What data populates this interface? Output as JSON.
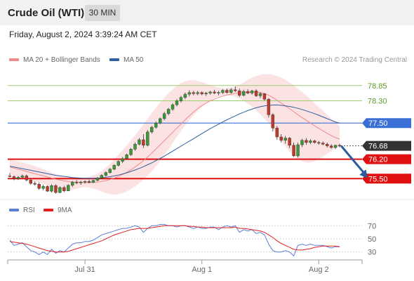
{
  "header": {
    "instrument": "Crude Oil (WTI)",
    "timeframe": "30 MIN"
  },
  "datetime": "Friday, August 2, 2024 3:39:24 AM CET",
  "legend_main": [
    {
      "label": "MA 20 + Bollinger Bands",
      "color": "#f08a8a"
    },
    {
      "label": "MA 50",
      "color": "#2f5f9e"
    }
  ],
  "credit": "Research © 2024 Trading Central",
  "legend_rsi": [
    {
      "label": "RSI",
      "color": "#5b7fd6"
    },
    {
      "label": "9MA",
      "color": "#e02020"
    }
  ],
  "colors": {
    "up": "#3a9a3a",
    "down": "#c0392b",
    "green_line": "#9acd6e",
    "blue_line": "#3a6fd6",
    "red_line": "#e01010",
    "arrow": "#2c5a9c"
  },
  "chart_data": {
    "type": "candlestick",
    "ylim": [
      74.8,
      79.3
    ],
    "x_ticks": [
      {
        "label": "Jul 31",
        "at": 18
      },
      {
        "label": "Aug 1",
        "at": 46
      },
      {
        "label": "Aug 2",
        "at": 74
      }
    ],
    "bars_count": 80,
    "candles": [
      [
        75.6,
        75.7,
        75.55,
        75.58
      ],
      [
        75.58,
        75.62,
        75.44,
        75.5
      ],
      [
        75.5,
        75.6,
        75.45,
        75.55
      ],
      [
        75.55,
        75.65,
        75.5,
        75.6
      ],
      [
        75.6,
        75.65,
        75.4,
        75.45
      ],
      [
        75.45,
        75.5,
        75.28,
        75.33
      ],
      [
        75.33,
        75.4,
        75.25,
        75.3
      ],
      [
        75.3,
        75.36,
        75.1,
        75.15
      ],
      [
        75.15,
        75.28,
        75.08,
        75.22
      ],
      [
        75.22,
        75.26,
        75.02,
        75.05
      ],
      [
        75.05,
        75.3,
        75.0,
        75.25
      ],
      [
        75.25,
        75.3,
        74.96,
        75.0
      ],
      [
        75.0,
        75.22,
        74.98,
        75.18
      ],
      [
        75.18,
        75.24,
        75.02,
        75.06
      ],
      [
        75.06,
        75.3,
        75.05,
        75.26
      ],
      [
        75.26,
        75.42,
        75.2,
        75.38
      ],
      [
        75.38,
        75.45,
        75.3,
        75.35
      ],
      [
        75.35,
        75.42,
        75.28,
        75.38
      ],
      [
        75.38,
        75.44,
        75.32,
        75.4
      ],
      [
        75.4,
        75.46,
        75.33,
        75.36
      ],
      [
        75.36,
        75.46,
        75.34,
        75.44
      ],
      [
        75.44,
        75.56,
        75.4,
        75.52
      ],
      [
        75.52,
        75.66,
        75.48,
        75.62
      ],
      [
        75.62,
        75.76,
        75.58,
        75.72
      ],
      [
        75.72,
        75.88,
        75.68,
        75.84
      ],
      [
        75.84,
        76.02,
        75.8,
        75.98
      ],
      [
        75.98,
        76.16,
        75.94,
        76.12
      ],
      [
        76.12,
        76.28,
        76.06,
        76.22
      ],
      [
        76.22,
        76.4,
        76.18,
        76.36
      ],
      [
        76.36,
        76.6,
        76.32,
        76.56
      ],
      [
        76.56,
        76.8,
        76.5,
        76.74
      ],
      [
        76.74,
        76.96,
        76.7,
        76.9
      ],
      [
        76.9,
        77.1,
        76.6,
        76.7
      ],
      [
        76.7,
        77.25,
        76.66,
        77.18
      ],
      [
        77.18,
        77.4,
        77.12,
        77.35
      ],
      [
        77.35,
        77.56,
        77.3,
        77.5
      ],
      [
        77.5,
        77.7,
        77.46,
        77.66
      ],
      [
        77.66,
        77.9,
        77.6,
        77.84
      ],
      [
        77.84,
        78.05,
        77.78,
        78.0
      ],
      [
        78.0,
        78.22,
        77.94,
        78.16
      ],
      [
        78.16,
        78.36,
        78.1,
        78.3
      ],
      [
        78.3,
        78.48,
        78.24,
        78.42
      ],
      [
        78.42,
        78.6,
        78.36,
        78.54
      ],
      [
        78.54,
        78.68,
        78.46,
        78.6
      ],
      [
        78.6,
        78.66,
        78.5,
        78.56
      ],
      [
        78.56,
        78.66,
        78.5,
        78.6
      ],
      [
        78.6,
        78.64,
        78.5,
        78.55
      ],
      [
        78.55,
        78.62,
        78.48,
        78.58
      ],
      [
        78.58,
        78.66,
        78.52,
        78.62
      ],
      [
        78.62,
        78.7,
        78.54,
        78.58
      ],
      [
        78.58,
        78.66,
        78.5,
        78.6
      ],
      [
        78.6,
        78.72,
        78.54,
        78.68
      ],
      [
        78.68,
        78.74,
        78.56,
        78.6
      ],
      [
        78.6,
        78.76,
        78.56,
        78.7
      ],
      [
        78.7,
        78.82,
        78.62,
        78.66
      ],
      [
        78.66,
        78.74,
        78.44,
        78.5
      ],
      [
        78.5,
        78.7,
        78.46,
        78.64
      ],
      [
        78.64,
        78.72,
        78.54,
        78.58
      ],
      [
        78.58,
        78.7,
        78.52,
        78.66
      ],
      [
        78.66,
        78.72,
        78.44,
        78.48
      ],
      [
        78.48,
        78.62,
        78.4,
        78.56
      ],
      [
        78.56,
        78.58,
        78.3,
        78.36
      ],
      [
        78.36,
        78.4,
        77.7,
        77.8
      ],
      [
        77.8,
        77.86,
        77.2,
        77.32
      ],
      [
        77.32,
        77.4,
        76.9,
        77.0
      ],
      [
        77.0,
        77.1,
        76.8,
        76.88
      ],
      [
        76.88,
        77.04,
        76.76,
        76.96
      ],
      [
        76.96,
        77.0,
        76.6,
        76.7
      ],
      [
        76.7,
        76.8,
        76.28,
        76.32
      ],
      [
        76.32,
        76.8,
        76.26,
        76.72
      ],
      [
        76.72,
        76.94,
        76.64,
        76.88
      ],
      [
        76.88,
        76.96,
        76.72,
        76.8
      ],
      [
        76.8,
        76.92,
        76.74,
        76.86
      ],
      [
        76.86,
        76.9,
        76.76,
        76.8
      ],
      [
        76.8,
        76.86,
        76.72,
        76.78
      ],
      [
        76.78,
        76.84,
        76.7,
        76.74
      ],
      [
        76.74,
        76.8,
        76.62,
        76.68
      ],
      [
        76.68,
        76.74,
        76.58,
        76.62
      ],
      [
        76.62,
        76.72,
        76.56,
        76.7
      ],
      [
        76.7,
        76.76,
        76.62,
        76.68
      ]
    ],
    "ma20": [
      75.92,
      75.88,
      75.84,
      75.8,
      75.76,
      75.72,
      75.68,
      75.64,
      75.6,
      75.56,
      75.52,
      75.48,
      75.45,
      75.42,
      75.4,
      75.38,
      75.37,
      75.36,
      75.36,
      75.36,
      75.37,
      75.38,
      75.4,
      75.43,
      75.47,
      75.52,
      75.58,
      75.65,
      75.73,
      75.82,
      75.92,
      76.03,
      76.15,
      76.28,
      76.42,
      76.57,
      76.72,
      76.87,
      77.02,
      77.17,
      77.32,
      77.47,
      77.62,
      77.76,
      77.9,
      78.02,
      78.13,
      78.22,
      78.3,
      78.36,
      78.42,
      78.47,
      78.51,
      78.54,
      78.57,
      78.59,
      78.6,
      78.61,
      78.61,
      78.61,
      78.6,
      78.56,
      78.5,
      78.42,
      78.32,
      78.22,
      78.12,
      78.02,
      77.91,
      77.8,
      77.7,
      77.6,
      77.5,
      77.4,
      77.31,
      77.22,
      77.13,
      77.05,
      76.98,
      76.92
    ],
    "bb_upper": [
      76.2,
      76.16,
      76.12,
      76.08,
      76.04,
      76.0,
      75.96,
      75.9,
      75.84,
      75.78,
      75.72,
      75.66,
      75.62,
      75.58,
      75.56,
      75.54,
      75.52,
      75.5,
      75.52,
      75.56,
      75.62,
      75.68,
      75.78,
      75.9,
      76.04,
      76.2,
      76.36,
      76.52,
      76.7,
      76.88,
      77.06,
      77.26,
      77.46,
      77.66,
      77.86,
      78.05,
      78.24,
      78.42,
      78.58,
      78.72,
      78.84,
      78.94,
      79.0,
      79.04,
      79.04,
      79.02,
      78.98,
      78.92,
      78.86,
      78.82,
      78.78,
      78.76,
      78.76,
      78.78,
      78.82,
      78.88,
      78.96,
      79.06,
      79.14,
      79.2,
      79.24,
      79.26,
      79.26,
      79.24,
      79.2,
      79.14,
      79.06,
      78.96,
      78.86,
      78.74,
      78.62,
      78.5,
      78.36,
      78.22,
      78.08,
      77.94,
      77.8,
      77.66,
      77.52,
      77.4
    ],
    "bb_lower": [
      75.64,
      75.6,
      75.56,
      75.52,
      75.48,
      75.44,
      75.4,
      75.36,
      75.32,
      75.26,
      75.2,
      75.14,
      75.1,
      75.08,
      75.08,
      75.1,
      75.14,
      75.18,
      75.2,
      75.18,
      75.14,
      75.1,
      75.04,
      74.98,
      74.94,
      74.92,
      74.94,
      74.98,
      75.04,
      75.12,
      75.22,
      75.34,
      75.46,
      75.6,
      75.76,
      75.94,
      76.14,
      76.34,
      76.56,
      76.78,
      77.0,
      77.22,
      77.42,
      77.6,
      77.78,
      77.94,
      78.08,
      78.22,
      78.32,
      78.4,
      78.46,
      78.5,
      78.5,
      78.48,
      78.44,
      78.38,
      78.3,
      78.2,
      78.08,
      77.96,
      77.82,
      77.66,
      77.5,
      77.3,
      77.08,
      76.86,
      76.66,
      76.48,
      76.32,
      76.2,
      76.12,
      76.08,
      76.08,
      76.12,
      76.2,
      76.3,
      76.4,
      76.5,
      76.6,
      76.7
    ],
    "ma50": [
      75.95,
      75.92,
      75.89,
      75.86,
      75.83,
      75.8,
      75.77,
      75.74,
      75.71,
      75.68,
      75.65,
      75.62,
      75.6,
      75.58,
      75.56,
      75.54,
      75.53,
      75.52,
      75.51,
      75.51,
      75.51,
      75.52,
      75.53,
      75.55,
      75.57,
      75.6,
      75.63,
      75.67,
      75.71,
      75.76,
      75.81,
      75.87,
      75.93,
      76.0,
      76.07,
      76.15,
      76.23,
      76.31,
      76.4,
      76.49,
      76.58,
      76.67,
      76.76,
      76.85,
      76.94,
      77.03,
      77.12,
      77.21,
      77.3,
      77.38,
      77.46,
      77.54,
      77.62,
      77.69,
      77.76,
      77.83,
      77.89,
      77.95,
      78.0,
      78.05,
      78.09,
      78.12,
      78.14,
      78.15,
      78.15,
      78.14,
      78.12,
      78.1,
      78.07,
      78.03,
      77.99,
      77.94,
      77.89,
      77.84,
      77.78,
      77.72,
      77.66,
      77.6,
      77.54,
      77.5
    ],
    "levels": [
      {
        "value": 78.85,
        "label": "78.85",
        "kind": "resistance-green"
      },
      {
        "value": 78.3,
        "label": "78.30",
        "kind": "resistance-green"
      },
      {
        "value": 77.5,
        "label": "77.50",
        "kind": "pivot-blue"
      },
      {
        "value": 76.68,
        "label": "76.68",
        "kind": "last-price"
      },
      {
        "value": 76.2,
        "label": "76.20",
        "kind": "support-red"
      },
      {
        "value": 75.5,
        "label": "75.50",
        "kind": "support-red"
      }
    ],
    "arrow": {
      "from": {
        "bar": 79,
        "value": 76.68
      },
      "to": {
        "bar": 83,
        "value": 75.52
      }
    },
    "rsi": {
      "ylim": [
        20,
        80
      ],
      "ticks": [
        70,
        50,
        30
      ],
      "rsi_values": [
        48,
        40,
        42,
        44,
        38,
        32,
        30,
        26,
        30,
        26,
        34,
        28,
        32,
        30,
        36,
        42,
        44,
        44,
        46,
        46,
        48,
        52,
        56,
        58,
        60,
        62,
        64,
        66,
        66,
        68,
        70,
        68,
        60,
        66,
        70,
        70,
        72,
        72,
        70,
        70,
        68,
        70,
        70,
        68,
        66,
        68,
        66,
        66,
        68,
        68,
        64,
        68,
        70,
        68,
        70,
        60,
        64,
        62,
        64,
        58,
        60,
        56,
        42,
        32,
        30,
        30,
        32,
        30,
        24,
        40,
        42,
        40,
        42,
        40,
        40,
        40,
        38,
        36,
        38,
        38
      ],
      "ma_values": [
        46,
        45,
        44,
        43,
        42,
        40,
        38,
        36,
        34,
        32,
        31,
        30,
        30,
        30,
        31,
        33,
        35,
        37,
        39,
        41,
        43,
        45,
        47,
        50,
        53,
        56,
        58,
        60,
        62,
        64,
        65,
        66,
        66,
        66,
        67,
        68,
        69,
        70,
        70,
        70,
        70,
        70,
        70,
        69,
        69,
        68,
        68,
        67,
        67,
        67,
        67,
        67,
        67,
        67,
        68,
        66,
        66,
        65,
        64,
        63,
        62,
        60,
        56,
        52,
        47,
        43,
        40,
        37,
        34,
        33,
        33,
        34,
        35,
        37,
        38,
        39,
        39,
        39,
        39,
        38
      ]
    }
  }
}
